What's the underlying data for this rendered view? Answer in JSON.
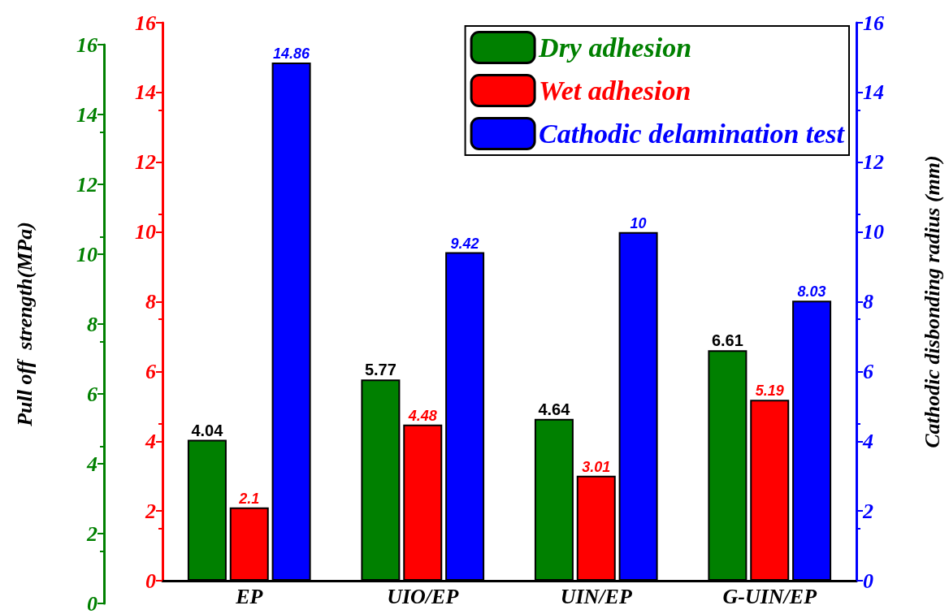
{
  "chart_data": {
    "type": "bar",
    "categories": [
      "EP",
      "UIO/EP",
      "UIN/EP",
      "G-UIN/EP"
    ],
    "series": [
      {
        "name": "Dry adhesion",
        "color": "#008000",
        "values": [
          4.04,
          5.77,
          4.64,
          6.61
        ]
      },
      {
        "name": "Wet adhesion",
        "color": "#ff0000",
        "values": [
          2.1,
          4.48,
          3.01,
          5.19
        ]
      },
      {
        "name": "Cathodic delamination test",
        "color": "#0000ff",
        "values": [
          14.86,
          9.42,
          10,
          8.03
        ],
        "axis": "y2"
      }
    ],
    "ylabel": "Pull off  strength(MPa)",
    "y2label": "Cathodic disbonding radius (mm)",
    "ylim": [
      0,
      16
    ],
    "yticks": [
      0,
      2,
      4,
      6,
      8,
      10,
      12,
      14,
      16
    ],
    "y2lim": [
      0,
      16
    ],
    "y2ticks": [
      0,
      2,
      4,
      6,
      8,
      10,
      12,
      14,
      16
    ],
    "y3lim": [
      0,
      16
    ],
    "y3ticks": [
      0,
      2,
      4,
      6,
      8,
      10,
      12,
      14,
      16
    ],
    "data_labels": true,
    "legend": "top right",
    "grid": false
  }
}
